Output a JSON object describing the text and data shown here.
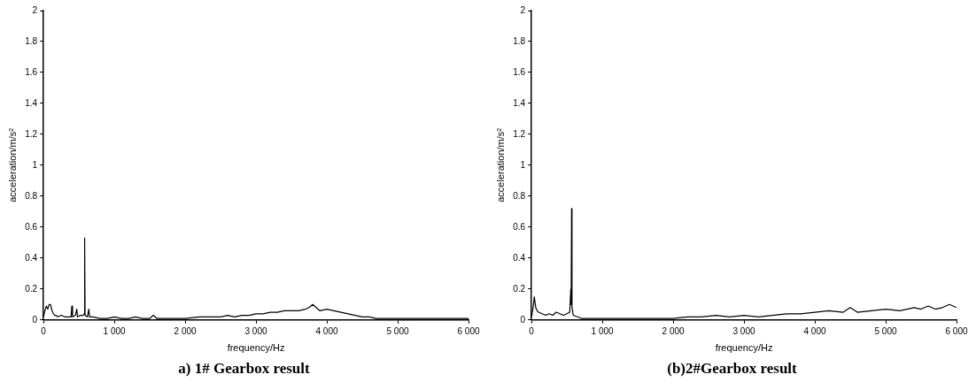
{
  "chart_data": [
    {
      "type": "line",
      "xlabel": "frequency/Hz",
      "ylabel": "acceleration/m/s²",
      "annotations": [
        "a) 1# Gearbox result"
      ],
      "x": [
        0,
        20,
        40,
        60,
        80,
        100,
        120,
        140,
        160,
        180,
        200,
        250,
        300,
        350,
        390,
        400,
        410,
        450,
        470,
        480,
        520,
        560,
        575,
        581,
        587,
        620,
        640,
        650,
        700,
        800,
        900,
        1000,
        1100,
        1200,
        1300,
        1400,
        1500,
        1550,
        1600,
        1700,
        1800,
        1900,
        2000,
        2200,
        2400,
        2500,
        2600,
        2700,
        2800,
        2900,
        3000,
        3100,
        3200,
        3300,
        3400,
        3500,
        3600,
        3700,
        3750,
        3800,
        3850,
        3900,
        4000,
        4100,
        4200,
        4300,
        4400,
        4500,
        4600,
        4700,
        4800,
        4900,
        5000,
        5200,
        5400,
        5600,
        5800,
        6000
      ],
      "series": [
        {
          "color": "#000000",
          "values": [
            0.02,
            0.06,
            0.09,
            0.07,
            0.1,
            0.1,
            0.06,
            0.04,
            0.03,
            0.03,
            0.02,
            0.03,
            0.02,
            0.02,
            0.02,
            0.09,
            0.02,
            0.03,
            0.07,
            0.02,
            0.03,
            0.03,
            0.04,
            0.53,
            0.03,
            0.02,
            0.07,
            0.02,
            0.02,
            0.01,
            0.01,
            0.02,
            0.01,
            0.01,
            0.02,
            0.01,
            0.01,
            0.03,
            0.01,
            0.01,
            0.01,
            0.01,
            0.01,
            0.02,
            0.02,
            0.02,
            0.03,
            0.02,
            0.03,
            0.03,
            0.04,
            0.04,
            0.05,
            0.05,
            0.06,
            0.06,
            0.06,
            0.07,
            0.08,
            0.1,
            0.08,
            0.06,
            0.07,
            0.06,
            0.05,
            0.04,
            0.03,
            0.02,
            0.02,
            0.01,
            0.01,
            0.01,
            0.01,
            0.01,
            0.01,
            0.01,
            0.01,
            0.01
          ]
        }
      ],
      "xlim": [
        0,
        6000
      ],
      "ylim": [
        0,
        2
      ],
      "xticks": [
        0,
        {
          "value": 1000,
          "label": "1 000"
        },
        {
          "value": 2000,
          "label": "2 000"
        },
        {
          "value": 3000,
          "label": "3 000"
        },
        {
          "value": 4000,
          "label": "4 000"
        },
        {
          "value": 5000,
          "label": "5 000"
        },
        {
          "value": 6000,
          "label": "6 000"
        }
      ],
      "yticks": [
        0,
        0.2,
        0.4,
        0.6,
        0.8,
        1,
        1.2,
        1.4,
        1.6,
        1.8,
        2
      ],
      "grid": false,
      "marker": "none"
    },
    {
      "type": "line",
      "xlabel": "frequency/Hz",
      "ylabel": "acceleration/m/s²",
      "annotations": [
        "(b)2#Gearbox result"
      ],
      "x": [
        0,
        20,
        40,
        60,
        80,
        100,
        150,
        200,
        250,
        300,
        350,
        400,
        450,
        500,
        540,
        555,
        560,
        566,
        572,
        590,
        650,
        700,
        800,
        900,
        1000,
        1200,
        1400,
        1600,
        1800,
        2000,
        2200,
        2400,
        2600,
        2800,
        3000,
        3200,
        3400,
        3600,
        3800,
        4000,
        4200,
        4400,
        4500,
        4600,
        4800,
        5000,
        5200,
        5400,
        5500,
        5600,
        5700,
        5800,
        5900,
        6000
      ],
      "series": [
        {
          "color": "#000000",
          "values": [
            0.02,
            0.07,
            0.15,
            0.08,
            0.06,
            0.05,
            0.04,
            0.03,
            0.04,
            0.03,
            0.05,
            0.04,
            0.03,
            0.04,
            0.05,
            0.2,
            0.1,
            0.72,
            0.08,
            0.03,
            0.02,
            0.01,
            0.01,
            0.01,
            0.01,
            0.01,
            0.01,
            0.01,
            0.01,
            0.01,
            0.02,
            0.02,
            0.03,
            0.02,
            0.03,
            0.02,
            0.03,
            0.04,
            0.04,
            0.05,
            0.06,
            0.05,
            0.08,
            0.05,
            0.06,
            0.07,
            0.06,
            0.08,
            0.07,
            0.09,
            0.07,
            0.08,
            0.1,
            0.08
          ]
        }
      ],
      "xlim": [
        0,
        6000
      ],
      "ylim": [
        0,
        2
      ],
      "xticks": [
        0,
        {
          "value": 1000,
          "label": "1 000"
        },
        {
          "value": 2000,
          "label": "2 000"
        },
        {
          "value": 3000,
          "label": "3 000"
        },
        {
          "value": 4000,
          "label": "4 000"
        },
        {
          "value": 5000,
          "label": "5 000"
        },
        {
          "value": 6000,
          "label": "6 000"
        }
      ],
      "yticks": [
        0,
        0.2,
        0.4,
        0.6,
        0.8,
        1,
        1.2,
        1.4,
        1.6,
        1.8,
        2
      ],
      "grid": false,
      "marker": "none"
    }
  ]
}
